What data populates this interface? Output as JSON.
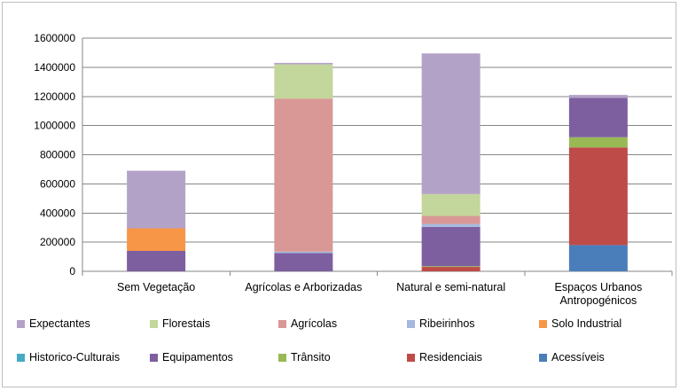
{
  "chart_data": {
    "type": "bar",
    "stacked": true,
    "categories": [
      "Sem Vegetação",
      "Agrícolas e Arborizadas",
      "Natural e semi-natural",
      "Espaços Urbanos Antropogénicos"
    ],
    "ylim": [
      0,
      1600000
    ],
    "yticks": [
      "0",
      "200000",
      "400000",
      "600000",
      "800000",
      "1000000",
      "1200000",
      "1400000",
      "1600000"
    ],
    "grid": true,
    "legend_position": "bottom",
    "series": [
      {
        "name": "Acessíveis",
        "color": "#4a7ebb",
        "values": [
          0,
          0,
          0,
          180000
        ]
      },
      {
        "name": "Residenciais",
        "color": "#be4b48",
        "values": [
          0,
          0,
          30000,
          670000
        ]
      },
      {
        "name": "Trânsito",
        "color": "#98b954",
        "values": [
          0,
          0,
          5000,
          70000
        ]
      },
      {
        "name": "Equipamentos",
        "color": "#7d5fa0",
        "values": [
          140000,
          125000,
          270000,
          270000
        ]
      },
      {
        "name": "Historico-Culturais",
        "color": "#46aac5",
        "values": [
          0,
          0,
          0,
          0
        ]
      },
      {
        "name": "Solo Industrial",
        "color": "#f79646",
        "values": [
          155000,
          0,
          0,
          0
        ]
      },
      {
        "name": "Ribeirinhos",
        "color": "#a5b9de",
        "values": [
          0,
          10000,
          20000,
          0
        ]
      },
      {
        "name": "Agrícolas",
        "color": "#d99795",
        "values": [
          0,
          1050000,
          55000,
          0
        ]
      },
      {
        "name": "Florestais",
        "color": "#c3d69b",
        "values": [
          0,
          235000,
          150000,
          0
        ]
      },
      {
        "name": "Expectantes",
        "color": "#b3a2c7",
        "values": [
          395000,
          10000,
          965000,
          20000
        ]
      }
    ]
  },
  "legend": [
    "Expectantes",
    "Florestais",
    "Agrícolas",
    "Ribeirinhos",
    "Solo Industrial",
    "Historico-Culturais",
    "Equipamentos",
    "Trânsito",
    "Residenciais",
    "Acessíveis"
  ]
}
